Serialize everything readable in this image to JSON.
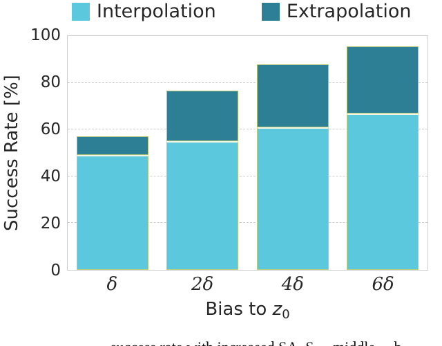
{
  "legend": {
    "items": [
      {
        "label": "Interpolation",
        "color": "#5bc8de"
      },
      {
        "label": "Extrapolation",
        "color": "#2d7f96"
      }
    ]
  },
  "axes": {
    "ylabel": "Success Rate [%]",
    "xlabel_prefix": "Bias to ",
    "xlabel_var": "z",
    "xlabel_sub": "0"
  },
  "chart_data": {
    "type": "bar",
    "stacked": true,
    "title": "",
    "xlabel": "Bias to z0",
    "ylabel": "Success Rate [%]",
    "categories": [
      "δ",
      "2δ",
      "4δ",
      "6δ"
    ],
    "series": [
      {
        "name": "Interpolation",
        "color": "#5bc8de",
        "values": [
          49,
          55,
          61,
          67
        ]
      },
      {
        "name": "Extrapolation",
        "color": "#2d7f96",
        "values": [
          8,
          21.5,
          27,
          28.5
        ]
      }
    ],
    "stack_totals": [
      57,
      76.5,
      88,
      95.5
    ],
    "ylim": [
      0,
      100
    ],
    "yticks": [
      0,
      20,
      40,
      60,
      80,
      100
    ],
    "grid": "horizontal-dashed",
    "legend_position": "top"
  },
  "colors": {
    "interpolation": "#5bc8de",
    "extrapolation": "#2d7f96",
    "grid": "#cccccc",
    "spine": "#cfcfcf",
    "text": "#262626"
  },
  "caption_fragment": "…success rate with increased SA. S… middle… b…"
}
